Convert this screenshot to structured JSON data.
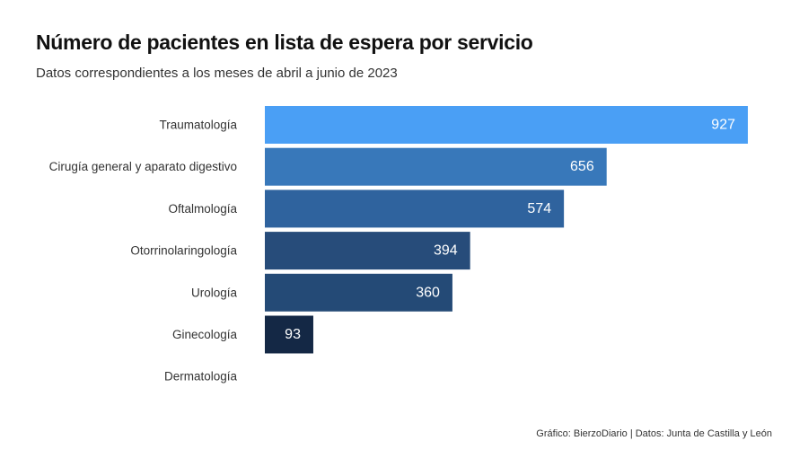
{
  "chart_data": {
    "type": "bar",
    "orientation": "horizontal",
    "title": "Número de pacientes en lista de espera por servicio",
    "subtitle": "Datos correspondientes a los meses de abril a junio de 2023",
    "categories": [
      "Traumatología",
      "Cirugía general y aparato digestivo",
      "Oftalmología",
      "Otorrinolaringología",
      "Urología",
      "Ginecología",
      "Dermatología"
    ],
    "values": [
      927,
      656,
      574,
      394,
      360,
      93,
      null
    ],
    "value_labels": [
      "927",
      "656",
      "574",
      "394",
      "360",
      "93",
      ""
    ],
    "colors": [
      "#4a9ff5",
      "#3878ba",
      "#2f639e",
      "#274c7a",
      "#244a76",
      "#142845",
      "#142845"
    ],
    "xlim": [
      0,
      927
    ],
    "grid": false,
    "legend": "none"
  },
  "footer": {
    "credit": "Gráfico: BierzoDiario | Datos: Junta de Castilla y León"
  }
}
